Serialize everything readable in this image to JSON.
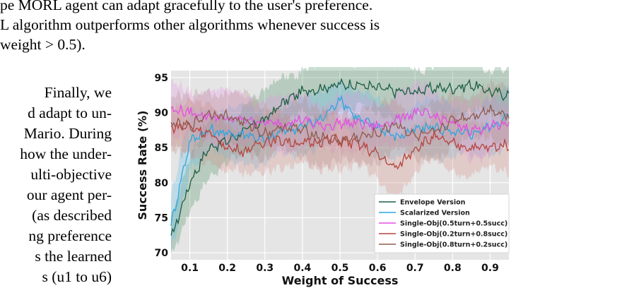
{
  "paper": {
    "top_lines": [
      "pe MORL agent can adapt gracefully to the user's preference.",
      "L algorithm outperforms other algorithms whenever success is",
      "weight > 0.5)."
    ],
    "left_lines": [
      "Finally,  we",
      "d adapt to un-",
      "Mario. During",
      "how the under-",
      "ulti-objective",
      "our agent per-",
      "(as described",
      "ng preference",
      "s the learned",
      "s (u1 to u6)"
    ]
  },
  "chart_data": {
    "type": "line",
    "xlabel": "Weight of Success",
    "ylabel": "Success Rate (%)",
    "xlim": [
      0.05,
      0.95
    ],
    "ylim": [
      69,
      96
    ],
    "xticks": [
      "0.1",
      "0.2",
      "0.3",
      "0.4",
      "0.5",
      "0.6",
      "0.7",
      "0.8",
      "0.9"
    ],
    "yticks": [
      "70",
      "75",
      "80",
      "85",
      "90",
      "95"
    ],
    "grid": true,
    "legend_position": "bottom-right",
    "x": [
      0.05,
      0.1,
      0.15,
      0.2,
      0.25,
      0.3,
      0.35,
      0.4,
      0.45,
      0.5,
      0.55,
      0.6,
      0.65,
      0.7,
      0.75,
      0.8,
      0.85,
      0.9,
      0.95
    ],
    "series": [
      {
        "name": "Envelope Version",
        "color": "#1d5e45",
        "band_color": "#3f8a5a",
        "values": [
          72,
          80,
          85,
          86,
          87.5,
          89,
          91.5,
          93,
          93.5,
          94,
          94,
          93.5,
          93,
          93,
          93.5,
          93.5,
          94,
          93,
          92.5
        ]
      },
      {
        "name": "Scalarized Version",
        "color": "#2aa7e0",
        "band_color": "#5bbde8",
        "values": [
          74,
          86,
          87.5,
          87,
          87,
          86,
          87.5,
          88,
          89,
          92,
          89,
          88,
          86.5,
          87.5,
          88,
          87,
          87,
          88,
          89.5
        ]
      },
      {
        "name": "Single-Obj(0.5turn+0.5succ)",
        "color": "#e34fe3",
        "band_color": "#e890e8",
        "values": [
          90.5,
          90,
          89.5,
          89,
          89,
          88.5,
          88.5,
          89,
          88,
          88.5,
          88.5,
          88,
          89,
          90,
          89.5,
          88.5,
          87.5,
          88,
          88.5
        ]
      },
      {
        "name": "Single-Obj(0.2turn+0.8succ)",
        "color": "#b5443c",
        "band_color": "#d98a82",
        "values": [
          88,
          88,
          87,
          85,
          84.5,
          86,
          86,
          85.5,
          86,
          86,
          85.5,
          84,
          82,
          85,
          86.5,
          85.5,
          85,
          85,
          85.5
        ]
      },
      {
        "name": "Single-Obj(0.8turn+0.2succ)",
        "color": "#8f5a4e",
        "band_color": "#b08a80",
        "values": [
          88.5,
          88,
          90,
          89.5,
          88.5,
          87,
          88,
          87.5,
          86.5,
          86,
          86.5,
          87,
          88.5,
          86.5,
          87,
          89,
          89.5,
          90.5,
          89.5
        ]
      }
    ]
  }
}
